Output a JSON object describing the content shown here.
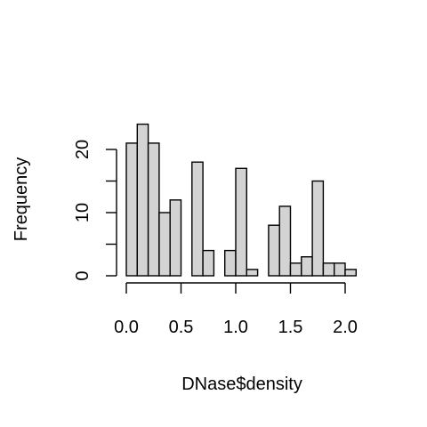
{
  "chart_data": {
    "type": "bar",
    "title": "",
    "xlabel": "DNase$density",
    "ylabel": "Frequency",
    "bin_width": 0.1,
    "bin_start": 0.0,
    "values": [
      21,
      24,
      21,
      10,
      12,
      0,
      18,
      4,
      0,
      4,
      17,
      1,
      0,
      8,
      11,
      2,
      3,
      15,
      2,
      2,
      1
    ],
    "x_ticks": [
      0.0,
      0.5,
      1.0,
      1.5,
      2.0
    ],
    "x_tick_labels": [
      "0.0",
      "0.5",
      "1.0",
      "1.5",
      "2.0"
    ],
    "y_ticks": [
      0,
      5,
      10,
      15,
      20
    ],
    "y_tick_labels": [
      "0",
      "",
      "10",
      "",
      "20"
    ],
    "xlim": [
      0,
      2.1
    ],
    "ylim": [
      0,
      24
    ],
    "grid": false,
    "legend": "none"
  }
}
